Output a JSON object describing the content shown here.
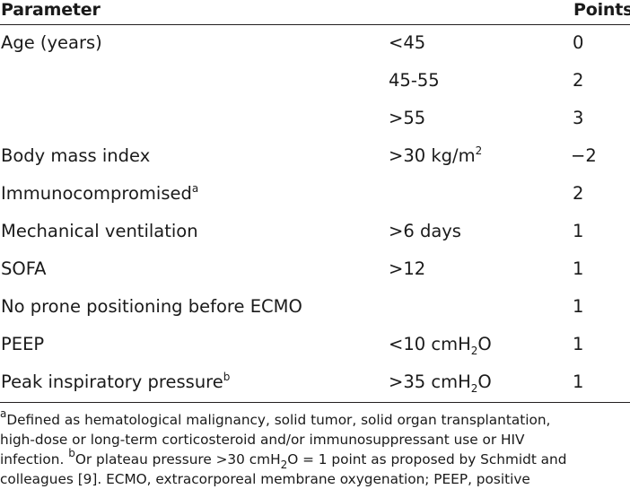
{
  "header": {
    "parameter": "Parameter",
    "points": "Points"
  },
  "rows": [
    {
      "parameter": "Age (years)",
      "value": "<45",
      "points": "0"
    },
    {
      "parameter": "",
      "value": "45-55",
      "points": "2"
    },
    {
      "parameter": "",
      "value": ">55",
      "points": "3"
    },
    {
      "parameter": "Body mass index",
      "value": ">30 kg/m",
      "value_sup": "2",
      "points": "−2"
    },
    {
      "parameter": "Immunocompromised",
      "parameter_sup": "a",
      "value": "",
      "points": "2"
    },
    {
      "parameter": "Mechanical ventilation",
      "value": ">6 days",
      "points": "1"
    },
    {
      "parameter": "SOFA",
      "value": ">12",
      "points": "1"
    },
    {
      "parameter": "No prone positioning before ECMO",
      "value": "",
      "points": "1"
    },
    {
      "parameter": "PEEP",
      "value": "<10 cmH",
      "value_sub": "2",
      "value_tail": "O",
      "points": "1"
    },
    {
      "parameter": "Peak inspiratory pressure",
      "parameter_sup": "b",
      "value": ">35 cmH",
      "value_sub": "2",
      "value_tail": "O",
      "points": "1"
    }
  ],
  "footnote": {
    "a_mark": "a",
    "line1": "Defined as hematological malignancy, solid tumor, solid organ transplantation,",
    "line2": "high-dose or long-term corticosteroid and/or immunosuppressant use or HIV",
    "line3a": "infection. ",
    "b_mark": "b",
    "line3b": "Or plateau pressure >30 cmH",
    "line3sub": "2",
    "line3c": "O = 1 point as proposed by Schmidt and",
    "line4": "colleagues [9]. ECMO, extracorporeal membrane oxygenation; PEEP, positive"
  }
}
